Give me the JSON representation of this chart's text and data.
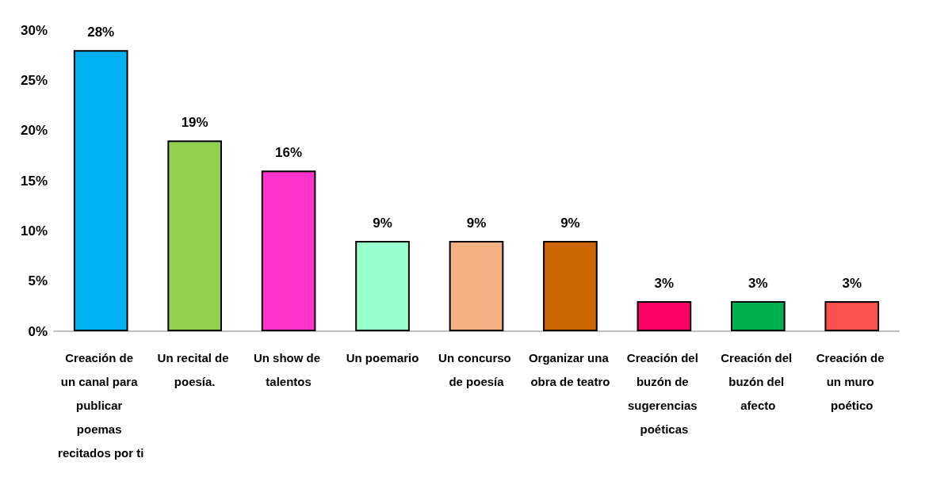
{
  "chart_data": {
    "type": "bar",
    "categories": [
      "Creación de un canal para publicar poemas recitados por ti",
      "Un recital de poesía.",
      "Un show de talentos",
      "Un poemario",
      "Un concurso de poesía",
      "Organizar una obra de teatro",
      "Creación del buzón de sugerencias poéticas",
      "Creación del buzón del afecto",
      "Creación de un muro poético"
    ],
    "values": [
      28,
      19,
      16,
      9,
      9,
      9,
      3,
      3,
      3
    ],
    "colors": [
      "#00b0f0",
      "#92d050",
      "#ff33cc",
      "#99ffcc",
      "#f4b183",
      "#cc6600",
      "#ff0066",
      "#00b050",
      "#ff5050"
    ],
    "value_labels": [
      "28%",
      "19%",
      "16%",
      "9%",
      "9%",
      "9%",
      "3%",
      "3%",
      "3%"
    ],
    "ylim": [
      0,
      30
    ],
    "yticks": [
      {
        "value": 0,
        "label": "0%"
      },
      {
        "value": 5,
        "label": "5%"
      },
      {
        "value": 10,
        "label": "10%"
      },
      {
        "value": 15,
        "label": "15%"
      },
      {
        "value": 20,
        "label": "20%"
      },
      {
        "value": 25,
        "label": "25%"
      },
      {
        "value": 30,
        "label": "30%"
      }
    ],
    "grid": false
  }
}
